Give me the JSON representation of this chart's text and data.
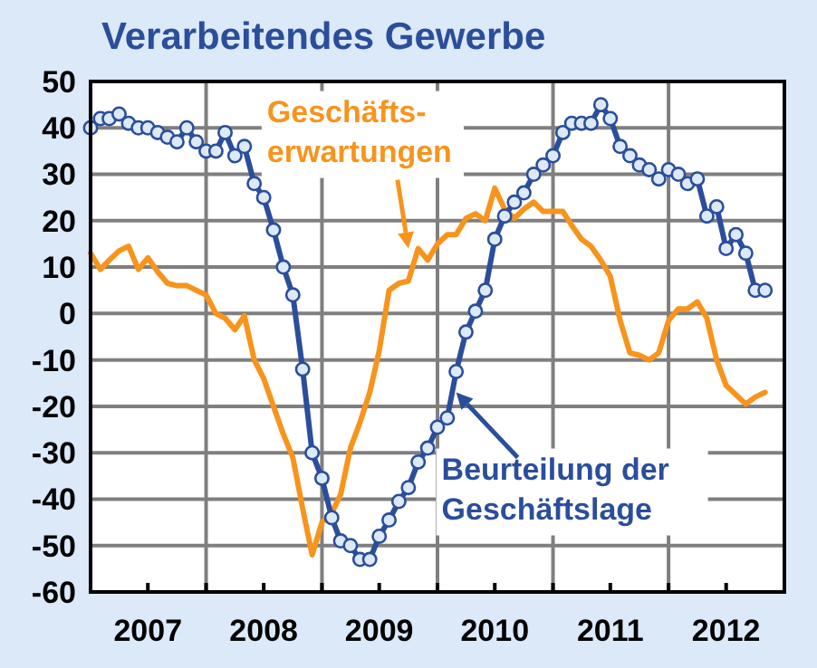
{
  "chart_data": {
    "type": "line",
    "title": "Verarbeitendes Gewerbe",
    "x": [
      "2007-01",
      "2007-02",
      "2007-03",
      "2007-04",
      "2007-05",
      "2007-06",
      "2007-07",
      "2007-08",
      "2007-09",
      "2007-10",
      "2007-11",
      "2007-12",
      "2008-01",
      "2008-02",
      "2008-03",
      "2008-04",
      "2008-05",
      "2008-06",
      "2008-07",
      "2008-08",
      "2008-09",
      "2008-10",
      "2008-11",
      "2008-12",
      "2009-01",
      "2009-02",
      "2009-03",
      "2009-04",
      "2009-05",
      "2009-06",
      "2009-07",
      "2009-08",
      "2009-09",
      "2009-10",
      "2009-11",
      "2009-12",
      "2010-01",
      "2010-02",
      "2010-03",
      "2010-04",
      "2010-05",
      "2010-06",
      "2010-07",
      "2010-08",
      "2010-09",
      "2010-10",
      "2010-11",
      "2010-12",
      "2011-01",
      "2011-02",
      "2011-03",
      "2011-04",
      "2011-05",
      "2011-06",
      "2011-07",
      "2011-08",
      "2011-09",
      "2011-10",
      "2011-11",
      "2011-12",
      "2012-01",
      "2012-02",
      "2012-03",
      "2012-04",
      "2012-05",
      "2012-06",
      "2012-07",
      "2012-08",
      "2012-09",
      "2012-10",
      "2012-11"
    ],
    "series": [
      {
        "color": "#f7941d",
        "marker": "none",
        "values": [
          13,
          9.5,
          11.5,
          13.5,
          14.5,
          9.5,
          12,
          9,
          6.5,
          6,
          6,
          5,
          4,
          0,
          -1,
          -3.5,
          -0.5,
          -10,
          -14,
          -20,
          -26,
          -31,
          -42,
          -52,
          -45,
          -43,
          -39,
          -29,
          -23.5,
          -17,
          -8,
          5,
          6.5,
          7,
          14,
          11.5,
          15,
          17,
          17,
          20.5,
          21.5,
          20,
          27,
          22.5,
          20.5,
          22.5,
          24,
          22,
          22,
          22,
          19,
          16,
          14.5,
          11.5,
          8,
          -1.5,
          -8.5,
          -9,
          -10,
          -8.5,
          -1.5,
          1,
          1,
          2.5,
          -1,
          -10,
          -15.5,
          -17.5,
          -19.5,
          -18,
          -17
        ]
      },
      {
        "color": "#2b4e9b",
        "marker": "circle",
        "values": [
          40,
          42,
          42,
          43,
          41,
          40,
          40,
          39,
          38,
          37,
          40,
          37,
          35,
          35,
          39,
          34,
          36,
          28,
          25,
          18,
          10,
          4,
          -12,
          -30,
          -35.5,
          -44,
          -49,
          -50,
          -53,
          -53,
          -48,
          -44.5,
          -40.5,
          -37.5,
          -32,
          -29,
          -24.5,
          -22.5,
          -12.5,
          -4,
          0.5,
          5,
          16,
          21,
          24,
          26,
          30,
          32,
          34,
          39,
          41,
          41,
          41,
          45,
          42,
          36,
          34,
          32,
          31,
          29,
          31,
          30,
          28,
          29,
          21,
          23,
          14,
          17,
          13,
          5,
          5
        ]
      }
    ],
    "xlim": [
      "2007-01-01",
      "2013-01-01"
    ],
    "xticks": [
      {
        "value": "2007-07-01",
        "label": "2007"
      },
      {
        "value": "2008-01-01",
        "label": null
      },
      {
        "value": "2008-07-01",
        "label": "2008"
      },
      {
        "value": "2009-01-01",
        "label": null
      },
      {
        "value": "2009-07-01",
        "label": "2009"
      },
      {
        "value": "2010-01-01",
        "label": null
      },
      {
        "value": "2010-07-01",
        "label": "2010"
      },
      {
        "value": "2011-01-01",
        "label": null
      },
      {
        "value": "2011-07-01",
        "label": "2011"
      },
      {
        "value": "2012-01-01",
        "label": null
      },
      {
        "value": "2012-07-01",
        "label": "2012"
      }
    ],
    "ylim": [
      -60,
      50
    ],
    "yticks": [
      -60,
      -50,
      -40,
      -30,
      -20,
      -10,
      0,
      10,
      20,
      30,
      40,
      50
    ],
    "grid": true,
    "line_style": "solid",
    "annotations": [
      {
        "text": "Geschäfts-\nerwartungen",
        "x": "2009-10",
        "y": 14
      },
      {
        "text": "Beurteilung der\nGeschäftslage",
        "x": "2010-03",
        "y": -17
      }
    ]
  }
}
